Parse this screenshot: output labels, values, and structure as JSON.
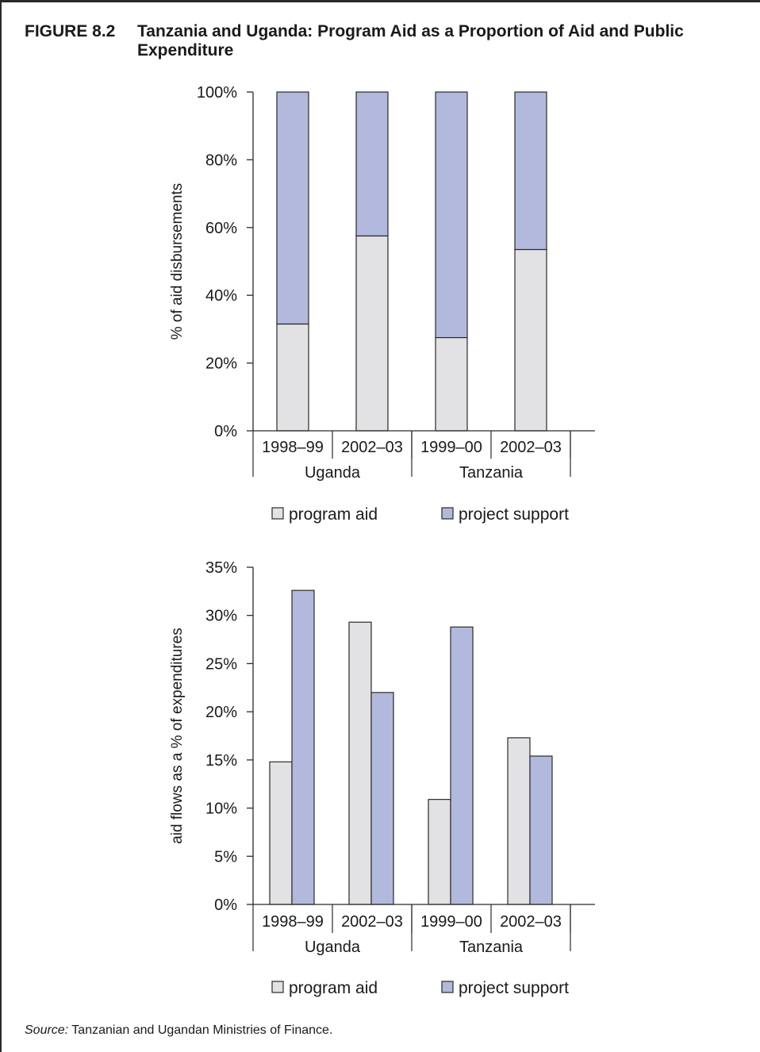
{
  "figure": {
    "label": "FIGURE 8.2",
    "title": "Tanzania and Uganda: Program Aid as a Proportion of Aid and Public Expenditure",
    "source_label": "Source:",
    "source_text": " Tanzanian and Ugandan Ministries of Finance."
  },
  "colors": {
    "program_aid": "#e2e2e4",
    "project_support": "#b3b9dc",
    "outline": "#2a2a2a"
  },
  "chart_data": [
    {
      "type": "bar",
      "stacked": true,
      "ylabel": "% of aid disbursements",
      "ylim": [
        0,
        100
      ],
      "yticks": [
        "0%",
        "20%",
        "40%",
        "60%",
        "80%",
        "100%"
      ],
      "categories": [
        "1998–99",
        "2002–03",
        "1999–00",
        "2002–03"
      ],
      "groups": [
        "Uganda",
        "Tanzania"
      ],
      "series": [
        {
          "name": "program aid",
          "values": [
            31.5,
            57.5,
            27.5,
            53.5
          ]
        },
        {
          "name": "project support",
          "values": [
            68.5,
            42.5,
            72.5,
            46.5
          ]
        }
      ],
      "legend": [
        "program aid",
        "project support"
      ]
    },
    {
      "type": "bar",
      "stacked": false,
      "ylabel": "aid flows as a % of expenditures",
      "ylim": [
        0,
        35
      ],
      "yticks": [
        "0%",
        "5%",
        "10%",
        "15%",
        "20%",
        "25%",
        "30%",
        "35%"
      ],
      "categories": [
        "1998–99",
        "2002–03",
        "1999–00",
        "2002–03"
      ],
      "groups": [
        "Uganda",
        "Tanzania"
      ],
      "series": [
        {
          "name": "program aid",
          "values": [
            14.8,
            29.3,
            10.9,
            17.3
          ]
        },
        {
          "name": "project support",
          "values": [
            32.6,
            22.0,
            28.8,
            15.4
          ]
        }
      ],
      "legend": [
        "program aid",
        "project support"
      ]
    }
  ]
}
